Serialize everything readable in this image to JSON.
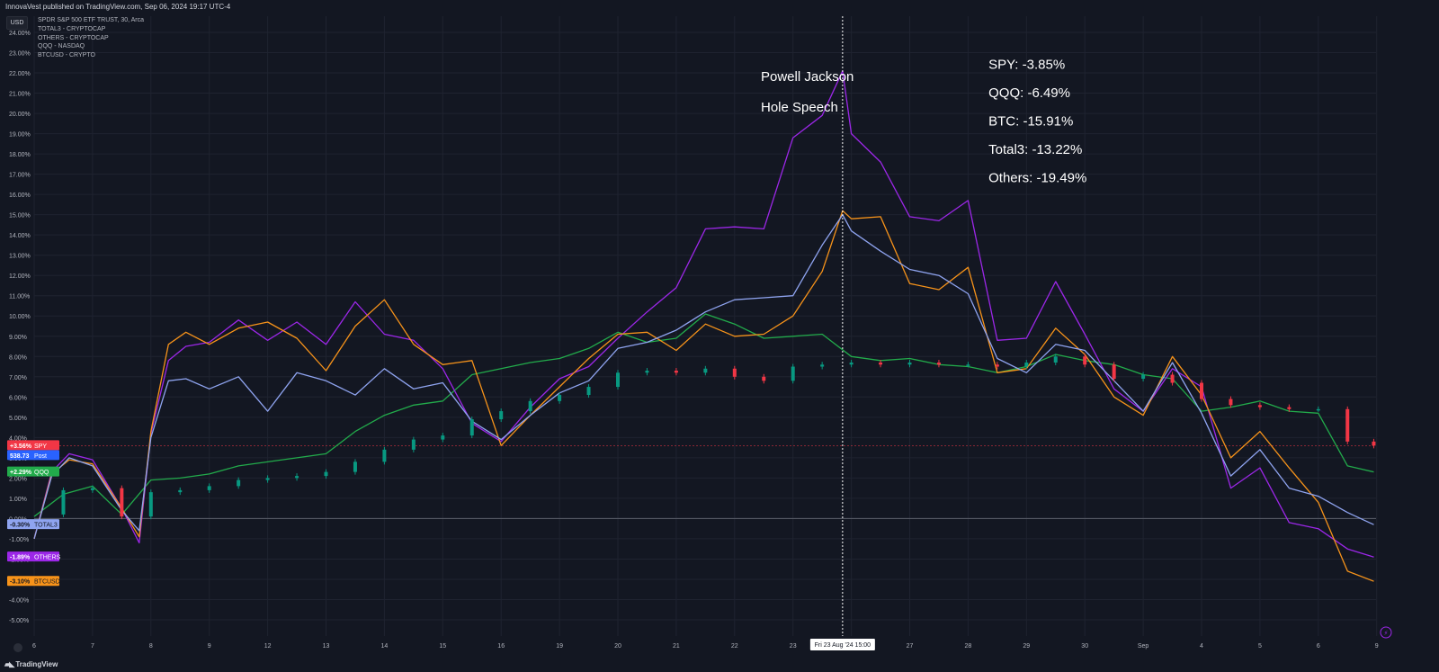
{
  "header": "InnovaVest published on TradingView.com, Sep 06, 2024 19:17 UTC-4",
  "currency_button": "USD",
  "legend": [
    "SPDR S&P 500 ETF TRUST, 30, Arca",
    "TOTAL3 - CRYPTOCAP",
    "OTHERS - CRYPTOCAP",
    "QQQ - NASDAQ",
    "BTCUSD - CRYPTO"
  ],
  "footer": "TradingView",
  "crosshair_label": "Fri 23 Aug '24   15:00",
  "go_to_realtime_icon": "lightning-icon",
  "colors": {
    "background": "#131722",
    "grid": "#1f2330",
    "spy_up": "#089981",
    "spy_down": "#f23645",
    "qqq": "#22ab4b",
    "total3": "#8fa4f0",
    "others": "#9c27e8",
    "btcusd": "#f7931a"
  },
  "chart_data": {
    "type": "line",
    "title": "",
    "ylabel": "",
    "ylim": [
      -5.8,
      24.8
    ],
    "y_ticks": [
      "24.00%",
      "23.00%",
      "22.00%",
      "21.00%",
      "20.00%",
      "19.00%",
      "18.00%",
      "17.00%",
      "16.00%",
      "15.00%",
      "14.00%",
      "13.00%",
      "12.00%",
      "11.00%",
      "10.00%",
      "9.00%",
      "8.00%",
      "7.00%",
      "6.00%",
      "5.00%",
      "4.00%",
      "3.00%",
      "2.00%",
      "1.00%",
      "0.00%",
      "-1.00%",
      "-2.00%",
      "-3.00%",
      "-4.00%",
      "-5.00%"
    ],
    "x_ticks": [
      {
        "label": "6",
        "x": 0
      },
      {
        "label": "7",
        "x": 1
      },
      {
        "label": "8",
        "x": 2
      },
      {
        "label": "9",
        "x": 3
      },
      {
        "label": "12",
        "x": 4
      },
      {
        "label": "13",
        "x": 5
      },
      {
        "label": "14",
        "x": 6
      },
      {
        "label": "15",
        "x": 7
      },
      {
        "label": "16",
        "x": 8
      },
      {
        "label": "19",
        "x": 9
      },
      {
        "label": "20",
        "x": 10
      },
      {
        "label": "21",
        "x": 11
      },
      {
        "label": "22",
        "x": 12
      },
      {
        "label": "23",
        "x": 13
      },
      {
        "label": "26",
        "x": 14
      },
      {
        "label": "27",
        "x": 15
      },
      {
        "label": "28",
        "x": 16
      },
      {
        "label": "29",
        "x": 17
      },
      {
        "label": "30",
        "x": 18
      },
      {
        "label": "Sep",
        "x": 19
      },
      {
        "label": "4",
        "x": 20
      },
      {
        "label": "5",
        "x": 21
      },
      {
        "label": "6",
        "x": 22
      },
      {
        "label": "9",
        "x": 23
      }
    ],
    "crosshair_x": 13.85,
    "zero_line": 0,
    "series": [
      {
        "name": "SPY",
        "label": "SPY",
        "badge": "+3.56%",
        "extra_badge": "538.73",
        "extra_label": "Post",
        "style": "candles",
        "color": "#f23645",
        "x": [
          0,
          0.5,
          1,
          1.5,
          2,
          2.5,
          3,
          3.5,
          4,
          4.5,
          5,
          5.5,
          6,
          6.5,
          7,
          7.5,
          8,
          8.5,
          9,
          9.5,
          10,
          10.5,
          11,
          11.5,
          12,
          12.5,
          13,
          13.5,
          14,
          14.5,
          15,
          15.5,
          16,
          16.5,
          17,
          17.5,
          18,
          18.5,
          19,
          19.5,
          20,
          20.5,
          21,
          21.5,
          22,
          22.5,
          22.95
        ],
        "values": [
          0.2,
          1.4,
          1.5,
          0.1,
          1.3,
          1.4,
          1.6,
          1.9,
          2.0,
          2.1,
          2.3,
          2.8,
          3.4,
          3.9,
          4.1,
          4.9,
          5.3,
          5.8,
          6.1,
          6.5,
          7.2,
          7.3,
          7.2,
          7.4,
          7.0,
          6.8,
          7.5,
          7.6,
          7.7,
          7.6,
          7.7,
          7.6,
          7.6,
          7.5,
          7.7,
          8.0,
          7.6,
          6.9,
          7.1,
          6.7,
          5.9,
          5.6,
          5.5,
          5.4,
          5.4,
          3.8,
          3.6
        ]
      },
      {
        "name": "QQQ",
        "label": "QQQ",
        "badge": "+2.29%",
        "style": "line",
        "color": "#22ab4b",
        "x": [
          0,
          0.5,
          1,
          1.5,
          2,
          2.5,
          3,
          3.5,
          4,
          4.5,
          5,
          5.5,
          6,
          6.5,
          7,
          7.5,
          8,
          8.5,
          9,
          9.5,
          10,
          10.5,
          11,
          11.5,
          12,
          12.5,
          13,
          13.5,
          14,
          14.5,
          15,
          15.5,
          16,
          16.5,
          17,
          17.5,
          18,
          18.5,
          19,
          19.5,
          20,
          20.5,
          21,
          21.5,
          22,
          22.5,
          22.95
        ],
        "values": [
          0.1,
          1.2,
          1.6,
          0.2,
          1.9,
          2.0,
          2.2,
          2.6,
          2.8,
          3.0,
          3.2,
          4.3,
          5.1,
          5.6,
          5.8,
          7.1,
          7.4,
          7.7,
          7.9,
          8.4,
          9.2,
          8.7,
          8.9,
          10.1,
          9.6,
          8.9,
          9.0,
          9.1,
          8.0,
          7.8,
          7.9,
          7.6,
          7.5,
          7.2,
          7.5,
          8.1,
          7.8,
          7.6,
          7.1,
          6.9,
          5.3,
          5.5,
          5.8,
          5.3,
          5.2,
          2.6,
          2.3
        ]
      },
      {
        "name": "TOTAL3",
        "label": "TOTAL3",
        "badge": "-0.30%",
        "style": "line",
        "color": "#8fa4f0",
        "x": [
          0,
          0.3,
          0.6,
          1,
          1.5,
          1.8,
          2,
          2.3,
          2.6,
          3,
          3.5,
          4,
          4.5,
          5,
          5.5,
          6,
          6.5,
          7,
          7.5,
          8,
          8.5,
          9,
          9.5,
          10,
          10.5,
          11,
          11.5,
          12,
          12.5,
          13,
          13.5,
          13.85,
          14,
          14.5,
          15,
          15.5,
          16,
          16.5,
          17,
          17.5,
          18,
          18.5,
          19,
          19.5,
          20,
          20.5,
          21,
          21.5,
          22,
          22.5,
          22.95
        ],
        "values": [
          -1.0,
          2.1,
          3.0,
          2.6,
          0.4,
          -0.6,
          4.0,
          6.8,
          6.9,
          6.4,
          7.0,
          5.3,
          7.2,
          6.8,
          6.1,
          7.4,
          6.4,
          6.7,
          4.8,
          3.9,
          5.1,
          6.2,
          6.8,
          8.4,
          8.7,
          9.3,
          10.2,
          10.8,
          10.9,
          11.0,
          13.5,
          15.0,
          14.2,
          13.2,
          12.3,
          12.0,
          11.1,
          7.9,
          7.2,
          8.6,
          8.3,
          6.8,
          5.3,
          7.7,
          5.2,
          2.1,
          3.4,
          1.5,
          1.1,
          0.3,
          -0.3
        ]
      },
      {
        "name": "OTHERS",
        "label": "OTHERS",
        "badge": "-1.89%",
        "style": "line",
        "color": "#9c27e8",
        "x": [
          0,
          0.3,
          0.6,
          1,
          1.5,
          1.8,
          2,
          2.3,
          2.6,
          3,
          3.5,
          4,
          4.5,
          5,
          5.5,
          6,
          6.5,
          7,
          7.5,
          8,
          8.5,
          9,
          9.5,
          10,
          10.5,
          11,
          11.5,
          12,
          12.5,
          13,
          13.5,
          13.85,
          14,
          14.5,
          15,
          15.5,
          16,
          16.5,
          17,
          17.5,
          18,
          18.5,
          19,
          19.5,
          20,
          20.5,
          21,
          21.5,
          22,
          22.5,
          22.95
        ],
        "values": [
          -1.0,
          2.3,
          3.2,
          2.9,
          0.5,
          -1.2,
          4.2,
          7.8,
          8.5,
          8.7,
          9.8,
          8.8,
          9.7,
          8.6,
          10.7,
          9.1,
          8.8,
          7.4,
          4.7,
          3.8,
          5.5,
          6.9,
          7.5,
          8.9,
          10.2,
          11.4,
          14.3,
          14.4,
          14.3,
          18.8,
          19.9,
          22.1,
          19.0,
          17.6,
          14.9,
          14.7,
          15.7,
          8.8,
          8.9,
          11.7,
          9.1,
          6.4,
          5.3,
          7.4,
          6.5,
          1.5,
          2.5,
          -0.2,
          -0.5,
          -1.5,
          -1.9
        ]
      },
      {
        "name": "BTCUSD",
        "label": "BTCUSD",
        "badge": "-3.10%",
        "style": "line",
        "color": "#f7931a",
        "x": [
          0,
          0.3,
          0.6,
          1,
          1.5,
          1.8,
          2,
          2.3,
          2.6,
          3,
          3.5,
          4,
          4.5,
          5,
          5.5,
          6,
          6.5,
          7,
          7.5,
          8,
          8.5,
          9,
          9.5,
          10,
          10.5,
          11,
          11.5,
          12,
          12.5,
          13,
          13.5,
          13.85,
          14,
          14.5,
          15,
          15.5,
          16,
          16.5,
          17,
          17.5,
          18,
          18.5,
          19,
          19.5,
          20,
          20.5,
          21,
          21.5,
          22,
          22.5,
          22.95
        ],
        "values": [
          -1.0,
          2.2,
          2.9,
          2.7,
          0.5,
          -0.9,
          4.3,
          8.6,
          9.2,
          8.6,
          9.4,
          9.7,
          8.9,
          7.3,
          9.5,
          10.8,
          8.6,
          7.6,
          7.8,
          3.6,
          5.1,
          6.5,
          7.9,
          9.1,
          9.2,
          8.3,
          9.6,
          9.0,
          9.1,
          10.0,
          12.2,
          15.2,
          14.8,
          14.9,
          11.6,
          11.3,
          12.4,
          7.2,
          7.4,
          9.4,
          8.1,
          6.0,
          5.1,
          8.0,
          6.1,
          3.0,
          4.3,
          2.5,
          0.8,
          -2.6,
          -3.1
        ]
      }
    ],
    "annotations": [
      {
        "text": "Powell Jackson",
        "x": 12.45,
        "y": 21.6
      },
      {
        "text": "Hole Speech",
        "x": 12.45,
        "y": 20.1
      },
      {
        "text": "SPY: -3.85%",
        "x": 16.35,
        "y": 22.2
      },
      {
        "text": "QQQ: -6.49%",
        "x": 16.35,
        "y": 20.8
      },
      {
        "text": "BTC: -15.91%",
        "x": 16.35,
        "y": 19.4
      },
      {
        "text": "Total3: -13.22%",
        "x": 16.35,
        "y": 18.0
      },
      {
        "text": "Others: -19.49%",
        "x": 16.35,
        "y": 16.6
      }
    ]
  }
}
